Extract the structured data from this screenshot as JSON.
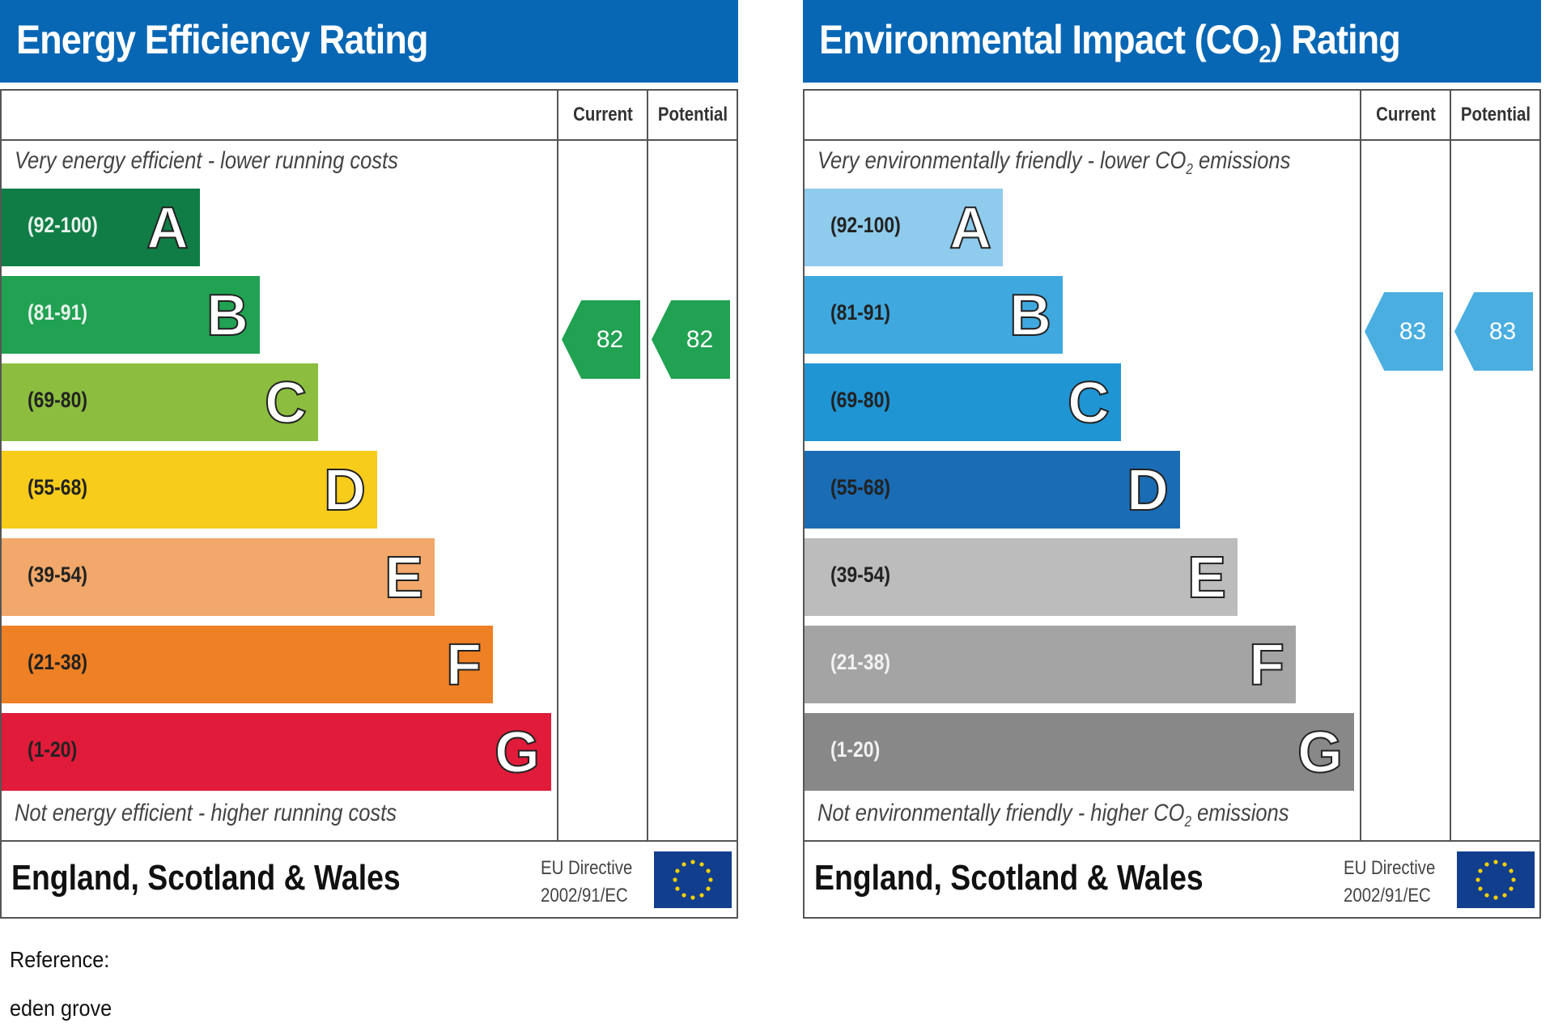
{
  "panels": [
    {
      "id": "energy",
      "title_parts": [
        "Energy Efficiency Rating",
        "",
        ""
      ],
      "columns": {
        "current": "Current",
        "potential": "Potential"
      },
      "top_note_parts": [
        "Very energy efficient - lower running costs",
        "",
        ""
      ],
      "bottom_note_parts": [
        "Not energy efficient - higher running costs",
        "",
        ""
      ],
      "bands": [
        {
          "range": "(92-100)",
          "letter": "A",
          "color": "#107d47",
          "text_color": "#e8f3ec"
        },
        {
          "range": "(81-91)",
          "letter": "B",
          "color": "#21a152",
          "text_color": "#e8f3ec"
        },
        {
          "range": "(69-80)",
          "letter": "C",
          "color": "#8cbd3f",
          "text_color": "#222222"
        },
        {
          "range": "(55-68)",
          "letter": "D",
          "color": "#f7cc1b",
          "text_color": "#222222"
        },
        {
          "range": "(39-54)",
          "letter": "E",
          "color": "#f1a86a",
          "text_color": "#222222"
        },
        {
          "range": "(21-38)",
          "letter": "F",
          "color": "#ee8125",
          "text_color": "#222222"
        },
        {
          "range": "(1-20)",
          "letter": "G",
          "color": "#e11b3a",
          "text_color": "#222222"
        }
      ],
      "current": {
        "value": "82",
        "band": "B",
        "color": "#21a152"
      },
      "potential": {
        "value": "82",
        "band": "B",
        "color": "#21a152"
      },
      "country": "England, Scotland & Wales",
      "eu_line1": "EU Directive",
      "eu_line2": "2002/91/EC"
    },
    {
      "id": "environmental",
      "title_parts": [
        "Environmental Impact (CO",
        "2",
        ") Rating"
      ],
      "columns": {
        "current": "Current",
        "potential": "Potential"
      },
      "top_note_parts": [
        "Very environmentally friendly - lower CO",
        "2",
        " emissions"
      ],
      "bottom_note_parts": [
        "Not environmentally friendly - higher CO",
        "2",
        " emissions"
      ],
      "bands": [
        {
          "range": "(92-100)",
          "letter": "A",
          "color": "#8fcbec",
          "text_color": "#222222"
        },
        {
          "range": "(81-91)",
          "letter": "B",
          "color": "#3fa9df",
          "text_color": "#222222"
        },
        {
          "range": "(69-80)",
          "letter": "C",
          "color": "#1f95d3",
          "text_color": "#222222"
        },
        {
          "range": "(55-68)",
          "letter": "D",
          "color": "#1a6cb4",
          "text_color": "#222222"
        },
        {
          "range": "(39-54)",
          "letter": "E",
          "color": "#bcbcbc",
          "text_color": "#222222"
        },
        {
          "range": "(21-38)",
          "letter": "F",
          "color": "#a4a4a4",
          "text_color": "#f2f2f2"
        },
        {
          "range": "(1-20)",
          "letter": "G",
          "color": "#888888",
          "text_color": "#f2f2f2"
        }
      ],
      "current": {
        "value": "83",
        "band": "B",
        "color": "#4aaee0"
      },
      "potential": {
        "value": "83",
        "band": "B",
        "color": "#4aaee0"
      },
      "country": "England, Scotland & Wales",
      "eu_line1": "EU Directive",
      "eu_line2": "2002/91/EC"
    }
  ],
  "reference": {
    "label": "Reference:",
    "value": "eden grove"
  },
  "colors": {
    "header": "#0767b4",
    "eu_flag": "#123e8e",
    "eu_star": "#f5d000"
  }
}
